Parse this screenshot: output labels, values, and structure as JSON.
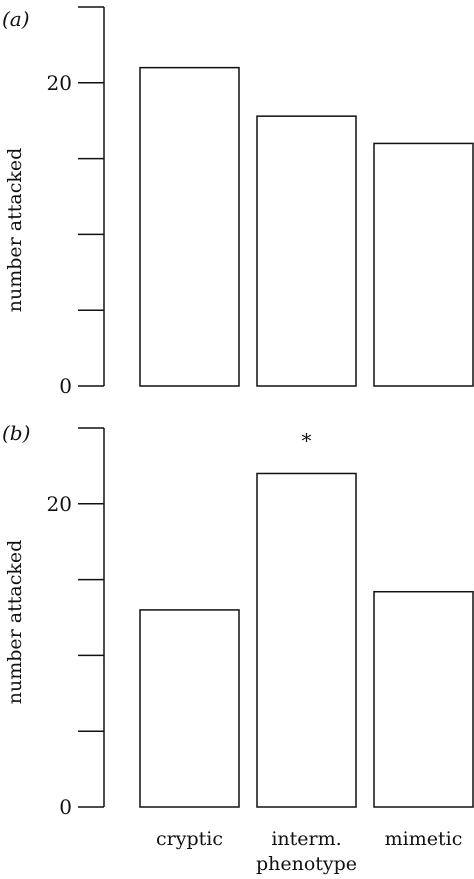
{
  "chart_data": [
    {
      "type": "bar",
      "panel_label": "(a)",
      "categories": [
        "cryptic",
        "interm. phenotype",
        "mimetic"
      ],
      "values": [
        21,
        17.8,
        16
      ],
      "ylabel": "number attacked",
      "ylim": [
        0,
        25
      ],
      "yticks": [
        0,
        5,
        10,
        15,
        20,
        25
      ],
      "ytick_labels": [
        "0",
        "",
        "",
        "",
        "20",
        ""
      ],
      "show_category_labels": false,
      "annotations": []
    },
    {
      "type": "bar",
      "panel_label": "(b)",
      "categories": [
        "cryptic",
        "interm. phenotype",
        "mimetic"
      ],
      "category_label_lines": [
        [
          "cryptic"
        ],
        [
          "interm.",
          "phenotype"
        ],
        [
          "mimetic"
        ]
      ],
      "values": [
        13,
        22,
        14.2
      ],
      "ylabel": "number attacked",
      "ylim": [
        0,
        25
      ],
      "yticks": [
        0,
        5,
        10,
        15,
        20,
        25
      ],
      "ytick_labels": [
        "0",
        "",
        "",
        "",
        "20",
        ""
      ],
      "show_category_labels": true,
      "annotations": [
        {
          "category": "interm. phenotype",
          "text": "*"
        }
      ]
    }
  ]
}
